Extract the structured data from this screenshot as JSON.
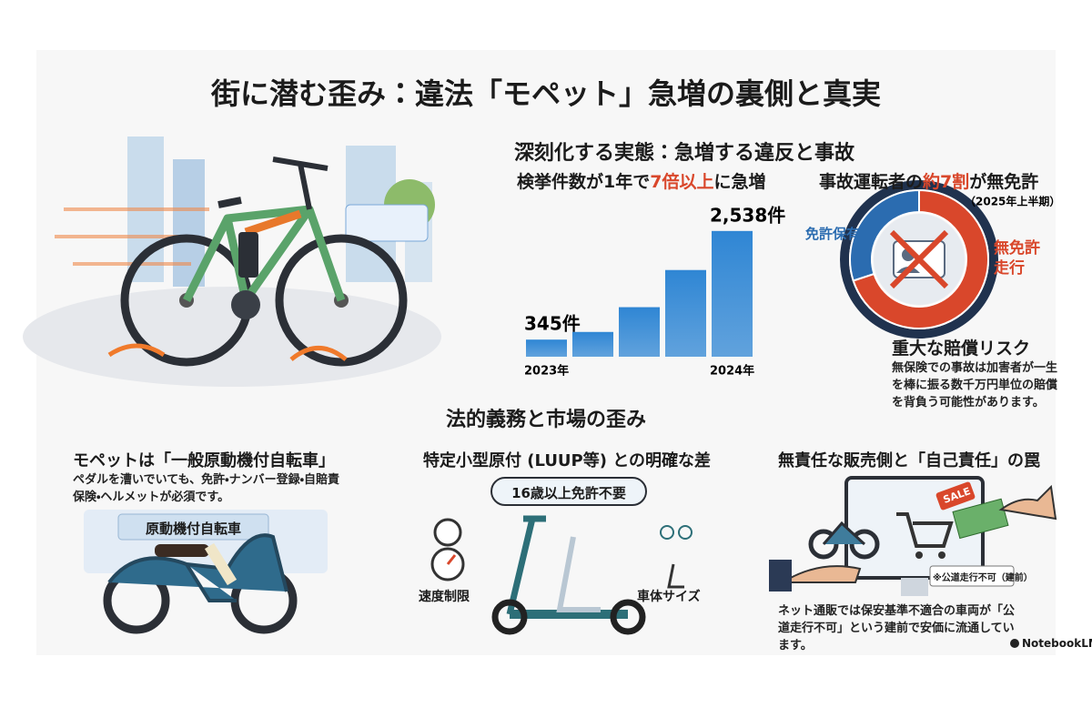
{
  "header": {
    "title": "街に潜む歪み：違法「モペット」急増の裏側と真実"
  },
  "section1": {
    "heading": "深刻化する実態：急増する違反と事故"
  },
  "chart_data": [
    {
      "type": "bar",
      "title": [
        "検挙件数が1年で",
        "7倍以上",
        "に急増"
      ],
      "categories": [
        "2023年",
        null,
        null,
        null,
        "2024年"
      ],
      "values": [
        345,
        500,
        1000,
        1750,
        2538
      ],
      "value_labels": [
        "345件",
        null,
        null,
        null,
        "2,538件"
      ],
      "color": "#2f86d4",
      "ylim": [
        0,
        2700
      ]
    },
    {
      "type": "pie",
      "title": [
        "事故運転者の",
        "約7割",
        "が無免許"
      ],
      "subtitle": "（2025年上半期）",
      "categories": [
        "免許保有",
        "無免許走行"
      ],
      "values": [
        30,
        70
      ],
      "colors": [
        "#2b6cb0",
        "#d9472b"
      ]
    }
  ],
  "risk": {
    "heading": "重大な賠償リスク",
    "text": "無保険での事故は加害者が一生を棒に振る数千万円単位の賠償を背負う可能性があります。"
  },
  "section2": {
    "heading": "法的義務と市場の歪み"
  },
  "columns": [
    {
      "heading": "モペットは「一般原動機付自転車」",
      "text": "ペダルを漕いでいても、免許・ナンバー登録・自賠責保険・ヘルメットが必須です。",
      "sign": "原動機付自転車"
    },
    {
      "heading": "特定小型原付 (LUUP等) との明確な差",
      "badge": "16歳以上免許不要",
      "labels": [
        "速度制限",
        "車体サイズ"
      ]
    },
    {
      "heading": "無責任な販売側と「自己責任」の罠",
      "tag": "SALE",
      "note": "※公道走行不可（建前）",
      "text": "ネット通販では保安基準不適合の車両が「公道走行不可」という建前で安価に流通しています。"
    }
  ],
  "footer": {
    "brand": "NotebookLM"
  }
}
